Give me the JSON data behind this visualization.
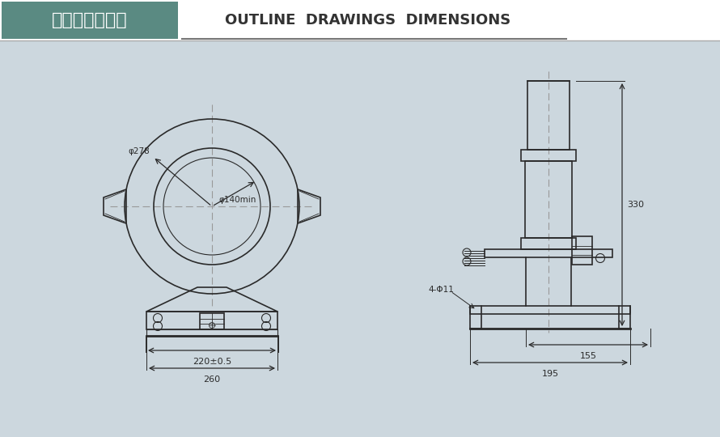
{
  "bg_color": "#ccd7de",
  "header_bg": "#5a8a82",
  "header_text_cn": "外形及安装尺寸",
  "header_text_en": "OUTLINE  DRAWINGS  DIMENSIONS",
  "line_color": "#2a2a2a",
  "dim_color": "#2a2a2a",
  "center_line_color": "#999999",
  "label_phi278": "φ278",
  "label_phi140": "φ140min",
  "label_220": "220±0.5",
  "label_260": "260",
  "label_330": "330",
  "label_155": "155",
  "label_195": "195",
  "label_4phi11": "4-Φ11"
}
